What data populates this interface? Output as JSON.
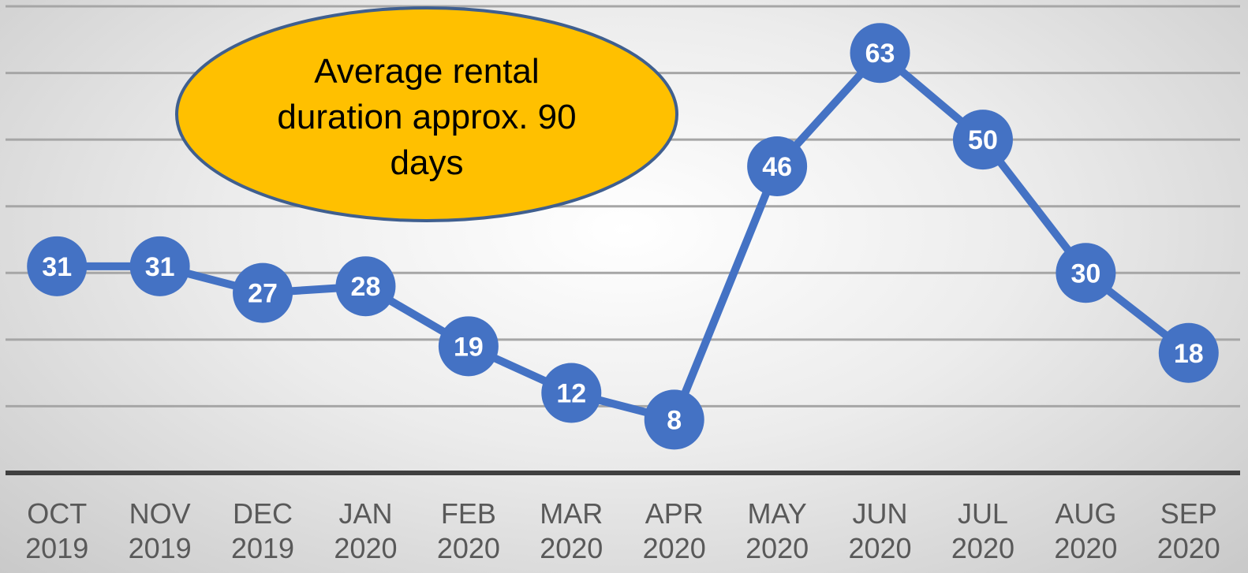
{
  "chart_data": {
    "type": "line",
    "annotation": "Average rental duration approx. 90 days",
    "categories": [
      "OCT 2019",
      "NOV 2019",
      "DEC 2019",
      "JAN 2020",
      "FEB 2020",
      "MAR 2020",
      "APR 2020",
      "MAY 2020",
      "JUN 2020",
      "JUL 2020",
      "AUG 2020",
      "SEP 2020"
    ],
    "values": [
      31,
      31,
      27,
      28,
      19,
      12,
      8,
      46,
      63,
      50,
      30,
      18
    ],
    "color": "#4472c4",
    "ylim": [
      0,
      70
    ],
    "yticks": [
      0,
      10,
      20,
      30,
      40,
      50,
      60,
      70
    ],
    "grid": true
  }
}
